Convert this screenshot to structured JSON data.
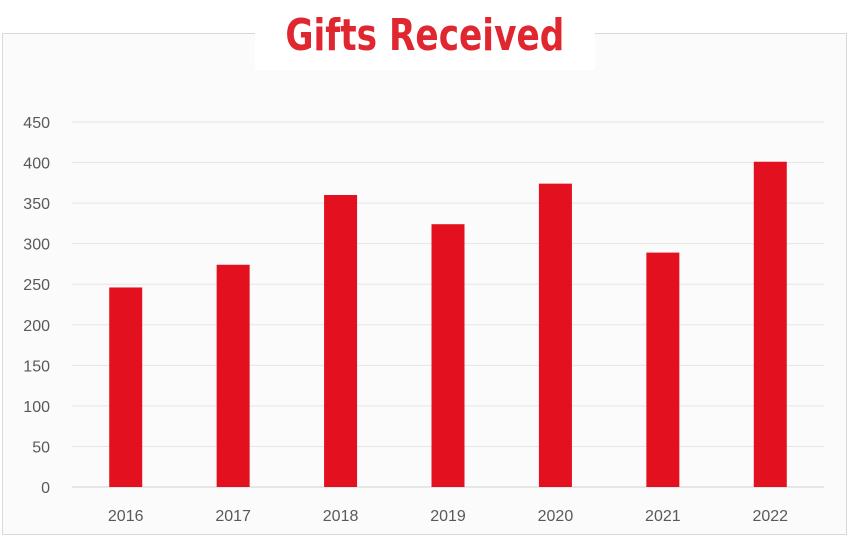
{
  "chart_data": {
    "type": "bar",
    "title": "Gifts Received",
    "categories": [
      "2016",
      "2017",
      "2018",
      "2019",
      "2020",
      "2021",
      "2022"
    ],
    "values": [
      246,
      274,
      360,
      324,
      374,
      289,
      401
    ],
    "ylim": [
      0,
      450
    ],
    "yticks": [
      0,
      50,
      100,
      150,
      200,
      250,
      300,
      350,
      400,
      450
    ],
    "xlabel": "",
    "ylabel": "",
    "grid": true,
    "legend": "none",
    "colors": {
      "bar": "#e3111f",
      "title": "#e0262f",
      "grid": "#e6e6e6",
      "tick_text": "#595959"
    }
  }
}
